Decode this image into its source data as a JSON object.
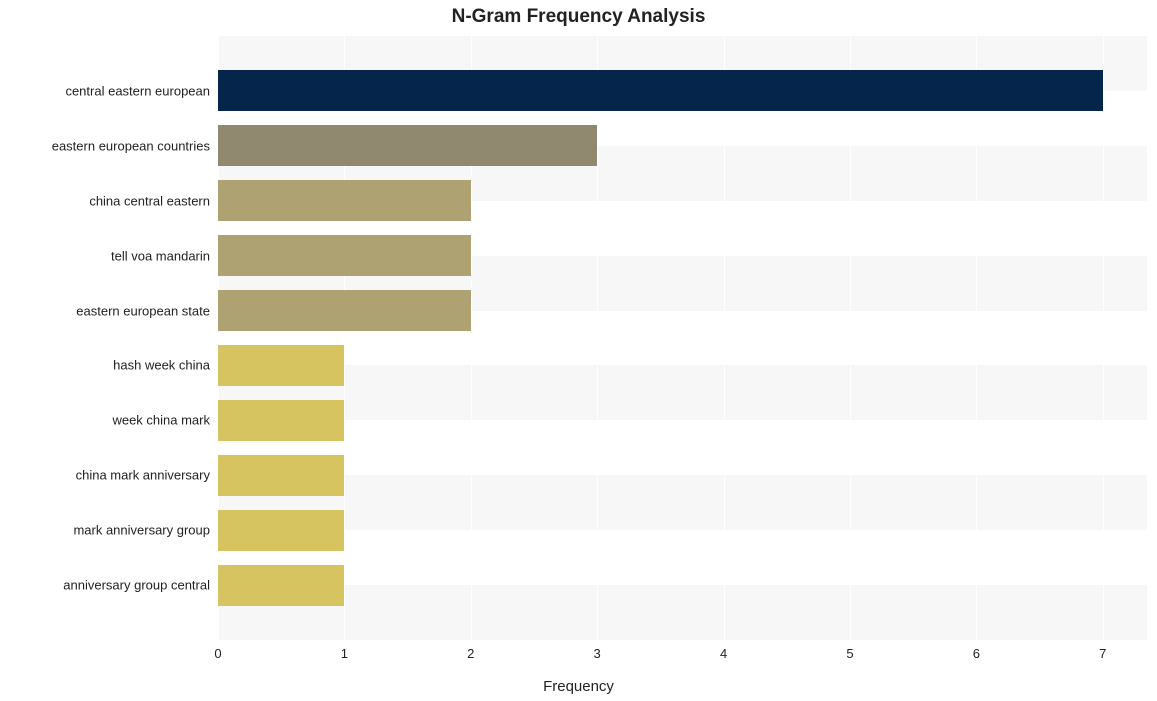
{
  "chart": {
    "type": "bar-horizontal",
    "title": "N-Gram Frequency Analysis",
    "title_fontsize": 19,
    "title_fontweight": "700",
    "xlabel": "Frequency",
    "label_fontsize": 15,
    "tick_fontsize": 13,
    "background_color": "#ffffff",
    "alt_row_color": "#f7f7f7",
    "grid_color": "#ffffff",
    "text_color": "#222222",
    "xlim": [
      0,
      7.35
    ],
    "xticks": [
      0,
      1,
      2,
      3,
      4,
      5,
      6,
      7
    ],
    "bar_rel_height": 0.75,
    "categories": [
      "central eastern european",
      "eastern european countries",
      "china central eastern",
      "tell voa mandarin",
      "eastern european state",
      "hash week china",
      "week china mark",
      "china mark anniversary",
      "mark anniversary group",
      "anniversary group central"
    ],
    "values": [
      7,
      3,
      2,
      2,
      2,
      1,
      1,
      1,
      1,
      1
    ],
    "bar_colors": [
      "#05264a",
      "#908970",
      "#aea272",
      "#aea272",
      "#aea272",
      "#d5c460",
      "#d5c460",
      "#d5c460",
      "#d5c460",
      "#d5c460"
    ]
  }
}
